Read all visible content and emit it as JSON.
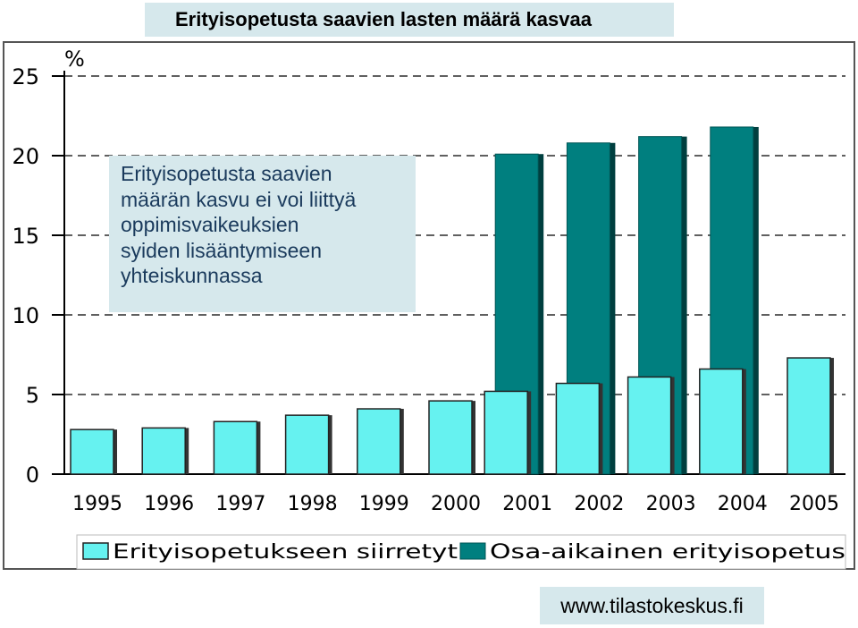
{
  "title": "Erityisopetusta saavien lasten määrä kasvaa",
  "note_lines": [
    "Erityisopetusta saavien",
    "määrän kasvu ei voi liittyä",
    "oppimisvaikeuksien",
    "syiden lisääntymiseen",
    "yhteiskunnassa"
  ],
  "source": "www.tilastokeskus.fi",
  "colors": {
    "series1": "#66f2f0",
    "series2": "#007f7f",
    "background_box": "#d6e8ec"
  },
  "chart_data": {
    "type": "bar",
    "ylabel": "%",
    "ylim": [
      0,
      25
    ],
    "yticks": [
      "0",
      "5",
      "10",
      "15",
      "20",
      "25"
    ],
    "grid": "dashed horizontal",
    "legend": "bottom",
    "categories": [
      "1995",
      "1996",
      "1997",
      "1998",
      "1999",
      "2000",
      "2001",
      "2002",
      "2003",
      "2004",
      "2005"
    ],
    "series": [
      {
        "name": "Erityisopetukseen siirretyt",
        "values": [
          2.8,
          2.9,
          3.3,
          3.7,
          4.1,
          4.6,
          5.2,
          5.7,
          6.1,
          6.6,
          7.3
        ]
      },
      {
        "name": "Osa-aikainen erityisopetus",
        "values": [
          null,
          null,
          null,
          null,
          null,
          null,
          20.1,
          20.8,
          21.2,
          21.8,
          null
        ]
      }
    ]
  }
}
